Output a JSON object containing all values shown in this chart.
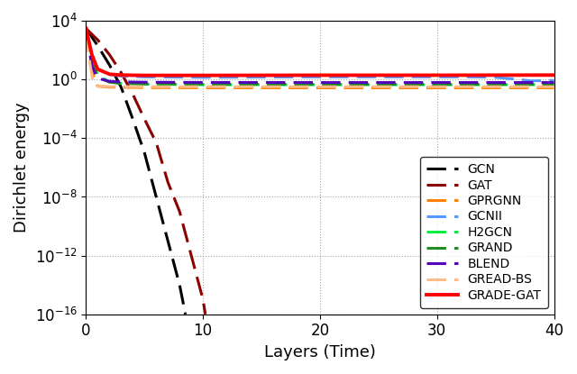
{
  "title": "",
  "xlabel": "Layers (Time)",
  "ylabel": "Dirichlet energy",
  "xlim": [
    0,
    40
  ],
  "ylim_log": [
    -16,
    4
  ],
  "xticks": [
    0,
    10,
    20,
    30,
    40
  ],
  "series": [
    {
      "name": "GCN",
      "color": "#000000",
      "linestyle": "dashed",
      "linewidth": 2.2,
      "x": [
        0,
        1,
        2,
        3,
        4,
        5,
        6,
        7,
        8,
        8.5
      ],
      "y": [
        3000,
        200,
        10,
        0.3,
        0.002,
        1e-05,
        1e-08,
        1e-11,
        1e-14,
        1e-16
      ]
    },
    {
      "name": "GAT",
      "color": "#8B0000",
      "linestyle": "dashed",
      "linewidth": 2.2,
      "x": [
        0,
        1,
        2,
        3,
        4,
        5,
        6,
        7,
        8,
        9,
        10,
        10.2
      ],
      "y": [
        3000,
        500,
        50,
        3,
        0.1,
        0.002,
        5e-05,
        1e-07,
        1e-09,
        1e-12,
        1e-15,
        1e-16
      ]
    },
    {
      "name": "GPRGNN",
      "color": "#FF8000",
      "linestyle": "dashed",
      "linewidth": 2.2,
      "x": [
        0,
        0.3,
        0.7,
        1.0,
        2,
        5,
        10,
        20,
        30,
        40
      ],
      "y": [
        2000,
        200,
        1.0,
        0.35,
        0.3,
        0.28,
        0.27,
        0.27,
        0.27,
        0.27
      ]
    },
    {
      "name": "GCNII",
      "color": "#5599FF",
      "linestyle": "dashed",
      "linewidth": 2.2,
      "x": [
        0,
        0.5,
        1,
        2,
        3,
        5,
        10,
        20,
        30,
        33,
        35,
        37,
        38,
        40
      ],
      "y": [
        3000,
        30,
        5,
        2.2,
        1.7,
        1.5,
        1.4,
        1.5,
        1.5,
        1.5,
        1.4,
        1.0,
        0.8,
        0.85
      ]
    },
    {
      "name": "H2GCN",
      "color": "#00EE44",
      "linestyle": "dashed",
      "linewidth": 2.2,
      "x": [
        0,
        0.5,
        1,
        2,
        3,
        5,
        10,
        20,
        30,
        40
      ],
      "y": [
        3000,
        20,
        2.0,
        0.7,
        0.55,
        0.48,
        0.44,
        0.44,
        0.44,
        0.44
      ]
    },
    {
      "name": "GRAND",
      "color": "#228B22",
      "linestyle": "dashed",
      "linewidth": 2.2,
      "x": [
        0,
        0.5,
        1,
        2,
        3,
        5,
        10,
        20,
        30,
        40
      ],
      "y": [
        3000,
        15,
        1.5,
        0.65,
        0.55,
        0.5,
        0.48,
        0.47,
        0.47,
        0.47
      ]
    },
    {
      "name": "BLEND",
      "color": "#5500BB",
      "linestyle": "dashed",
      "linewidth": 2.2,
      "x": [
        0,
        0.5,
        1,
        2,
        3,
        5,
        10,
        20,
        30,
        40
      ],
      "y": [
        3000,
        8,
        1.2,
        0.75,
        0.68,
        0.65,
        0.63,
        0.62,
        0.62,
        0.62
      ]
    },
    {
      "name": "GREAD-BS",
      "color": "#FFBB88",
      "linestyle": "dashed",
      "linewidth": 2.2,
      "x": [
        0,
        0.3,
        0.6,
        1.0,
        2,
        5,
        10,
        20,
        30,
        40
      ],
      "y": [
        1500,
        20,
        0.6,
        0.35,
        0.33,
        0.32,
        0.32,
        0.32,
        0.32,
        0.32
      ]
    },
    {
      "name": "GRADE-GAT",
      "color": "#FF0000",
      "linestyle": "solid",
      "linewidth": 2.8,
      "x": [
        0,
        0.5,
        1,
        2,
        3,
        5,
        10,
        20,
        30,
        40
      ],
      "y": [
        3000,
        50,
        5,
        2.3,
        2.0,
        1.9,
        1.9,
        1.95,
        1.95,
        2.0
      ]
    }
  ],
  "figsize": [
    6.4,
    4.15
  ],
  "dpi": 100
}
